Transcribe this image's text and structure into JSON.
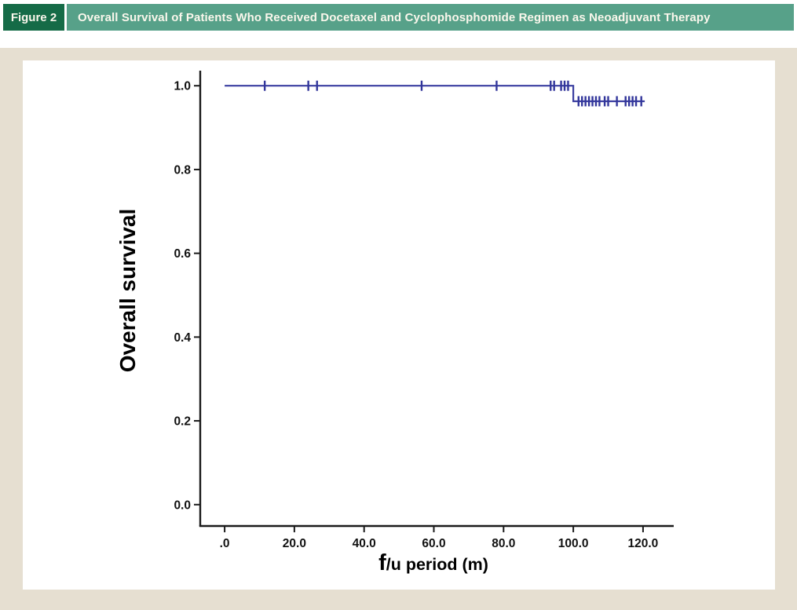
{
  "header": {
    "figure_label": "Figure 2",
    "title": "Overall Survival of Patients Who Received Docetaxel and Cyclophosphomide Regimen as Neoadjuvant Therapy"
  },
  "colors": {
    "header_box_bg": "#156b47",
    "header_bar_bg": "#57a189",
    "header_text": "#faf7ec",
    "panel_border": "#e6dfd1",
    "chart_bg": "#ffffff",
    "axis": "#1a1a1a",
    "tick_text": "#111111",
    "curve": "#3b3fa1",
    "censor": "#32369b"
  },
  "chart_data": {
    "type": "line",
    "subtype": "kaplan-meier-step",
    "title": "",
    "xlabel_big_prefix": "f",
    "xlabel_rest": "/u period (m)",
    "ylabel": "Overall survival",
    "xticks": [
      0,
      20,
      40,
      60,
      80,
      100,
      120
    ],
    "xtick_labels": [
      ".0",
      "20.0",
      "40.0",
      "60.0",
      "80.0",
      "100.0",
      "120.0"
    ],
    "yticks": [
      0.0,
      0.2,
      0.4,
      0.6,
      0.8,
      1.0
    ],
    "ytick_labels": [
      "0.0",
      "0.2",
      "0.4",
      "0.6",
      "0.8",
      "1.0"
    ],
    "xlim": [
      -7,
      128.8
    ],
    "ylim": [
      -0.051,
      1.036
    ],
    "grid": false,
    "legend": false,
    "series": [
      {
        "name": "Overall survival",
        "color": "#3b3fa1",
        "curve": [
          [
            0,
            1.0
          ],
          [
            100,
            1.0
          ],
          [
            100,
            0.963
          ],
          [
            120.5,
            0.963
          ]
        ],
        "censored": [
          [
            11.5,
            1.0
          ],
          [
            24,
            1.0
          ],
          [
            26.5,
            1.0
          ],
          [
            56.5,
            1.0
          ],
          [
            78,
            1.0
          ],
          [
            93.5,
            1.0
          ],
          [
            94.5,
            1.0
          ],
          [
            96.5,
            1.0
          ],
          [
            97.5,
            1.0
          ],
          [
            98.5,
            1.0
          ],
          [
            101.5,
            0.963
          ],
          [
            102.5,
            0.963
          ],
          [
            103.5,
            0.963
          ],
          [
            104.5,
            0.963
          ],
          [
            105.5,
            0.963
          ],
          [
            106.5,
            0.963
          ],
          [
            107.5,
            0.963
          ],
          [
            109,
            0.963
          ],
          [
            110,
            0.963
          ],
          [
            112.5,
            0.963
          ],
          [
            115,
            0.963
          ],
          [
            116,
            0.963
          ],
          [
            117,
            0.963
          ],
          [
            118,
            0.963
          ],
          [
            119.5,
            0.963
          ]
        ]
      }
    ]
  }
}
